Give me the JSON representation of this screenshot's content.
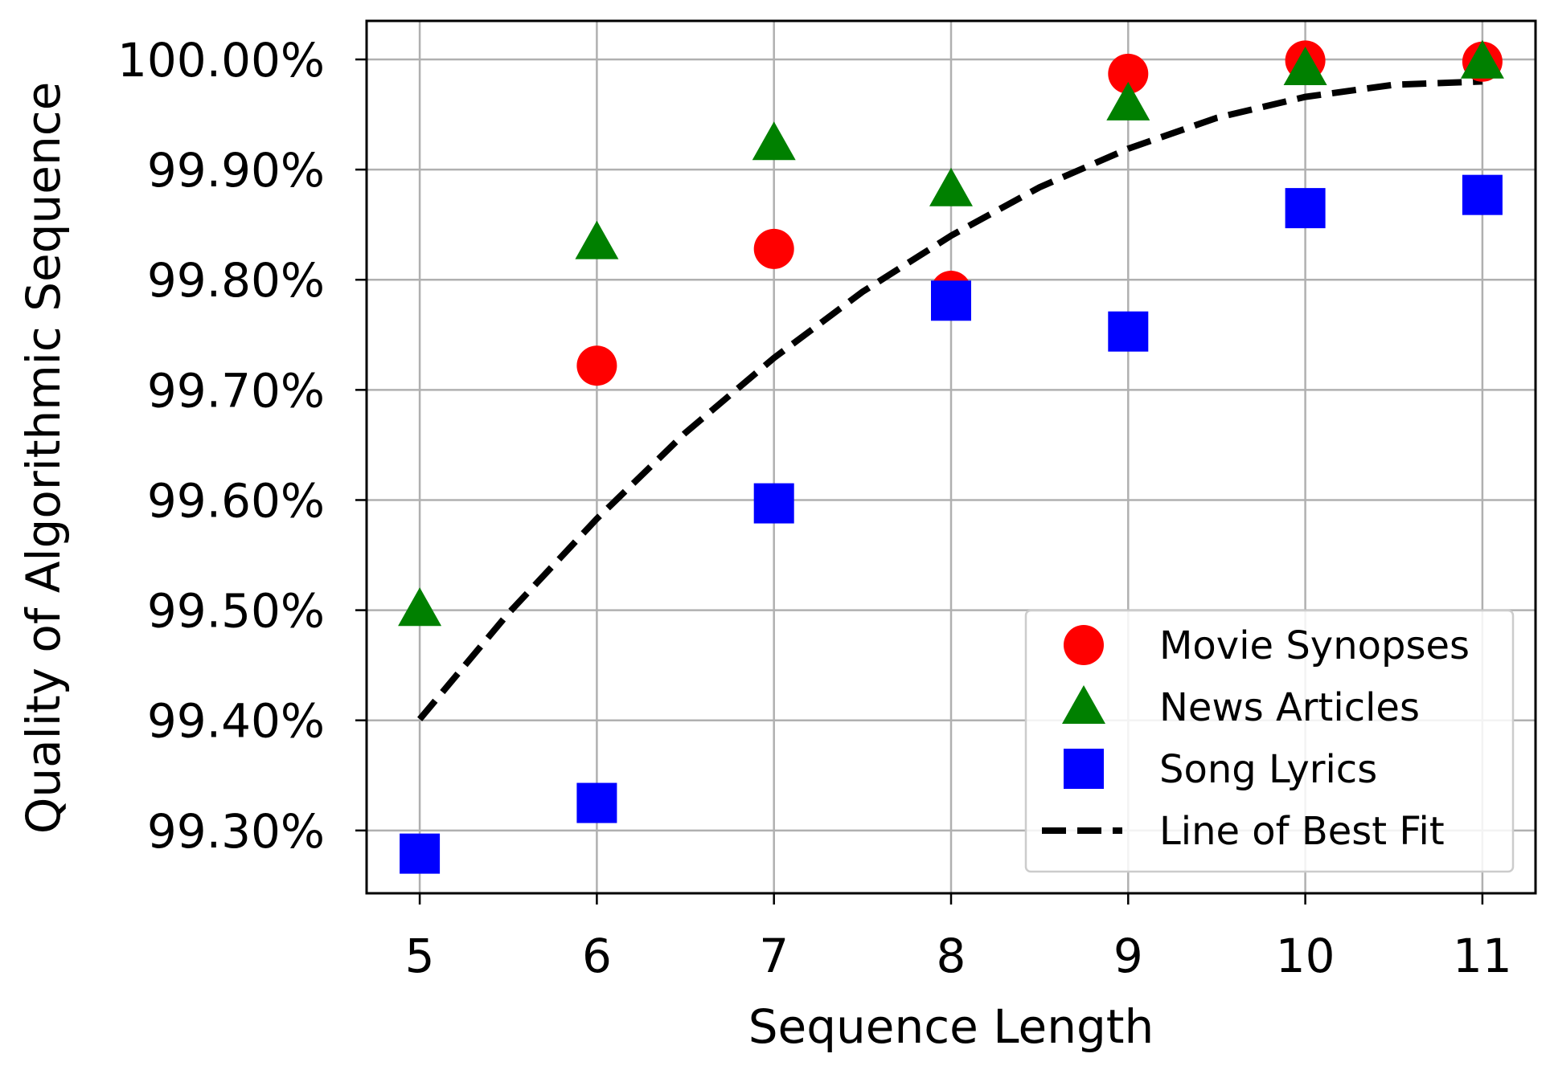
{
  "chart_data": {
    "type": "scatter",
    "xlabel": "Sequence Length",
    "ylabel": "Quality of Algorithmic Sequence",
    "xlim": [
      4.7,
      11.3
    ],
    "ylim": [
      99.243,
      100.035
    ],
    "x_ticks": [
      5,
      6,
      7,
      8,
      9,
      10,
      11
    ],
    "y_ticks": [
      99.3,
      99.4,
      99.5,
      99.6,
      99.7,
      99.8,
      99.9,
      100.0
    ],
    "y_tick_labels": [
      "99.30%",
      "99.40%",
      "99.50%",
      "99.60%",
      "99.70%",
      "99.80%",
      "99.90%",
      "100.00%"
    ],
    "grid": true,
    "legend_position": "lower-right",
    "series": [
      {
        "name": "Movie Synopses",
        "marker": "circle",
        "color": "#ff0000",
        "x": [
          6,
          7,
          8,
          9,
          10,
          11
        ],
        "y": [
          99.722,
          99.828,
          99.79,
          99.987,
          99.999,
          99.998
        ]
      },
      {
        "name": "News Articles",
        "marker": "triangle",
        "color": "#008000",
        "x": [
          5,
          6,
          7,
          8,
          9,
          10,
          11
        ],
        "y": [
          99.501,
          99.834,
          99.924,
          99.882,
          99.96,
          99.992,
          99.998
        ]
      },
      {
        "name": "Song Lyrics",
        "marker": "square",
        "color": "#0000ff",
        "x": [
          5,
          6,
          7,
          8,
          9,
          10,
          11
        ],
        "y": [
          99.279,
          99.325,
          99.597,
          99.781,
          99.753,
          99.865,
          99.877
        ]
      },
      {
        "name": "Line of Best Fit",
        "marker": "dashed-line",
        "color": "#000000",
        "x": [
          5,
          5.5,
          6,
          6.5,
          7,
          7.5,
          8,
          8.5,
          9,
          9.5,
          10,
          10.5,
          11
        ],
        "y": [
          99.401,
          99.497,
          99.583,
          99.661,
          99.729,
          99.789,
          99.84,
          99.884,
          99.919,
          99.947,
          99.966,
          99.977,
          99.98
        ]
      }
    ]
  }
}
